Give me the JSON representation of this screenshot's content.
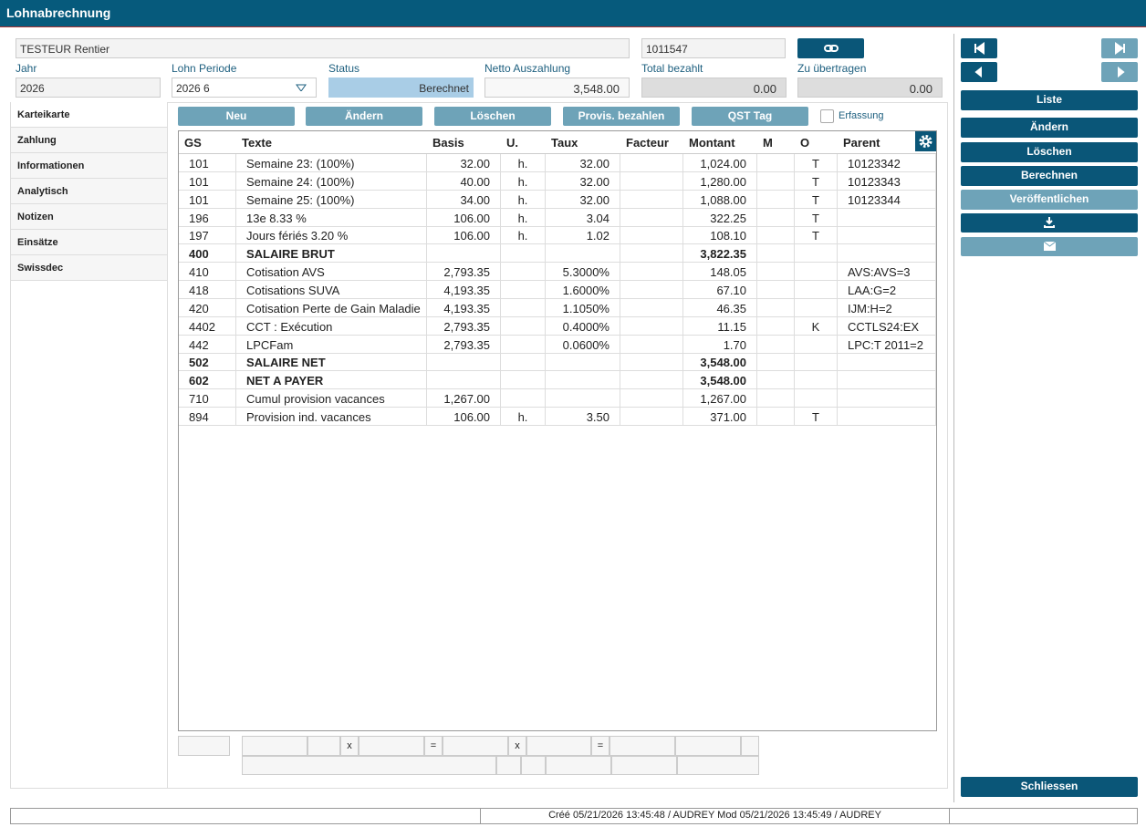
{
  "header": {
    "title": "Lohnabrechnung"
  },
  "form": {
    "name": "TESTEUR  Rentier",
    "number": "1011547",
    "fields": [
      {
        "label": "Jahr",
        "value": "2026"
      },
      {
        "label": "Lohn Periode",
        "value": "2026 6"
      },
      {
        "label": "Status",
        "value": "Berechnet"
      },
      {
        "label": "Netto Auszahlung",
        "value": "3,548.00"
      },
      {
        "label": "Total bezahlt",
        "value": "0.00"
      },
      {
        "label": "Zu übertragen",
        "value": "0.00"
      }
    ]
  },
  "tabs": [
    "Karteikarte",
    "Zahlung",
    "Informationen",
    "Analytisch",
    "Notizen",
    "Einsätze",
    "Swissdec"
  ],
  "toolbar": {
    "buttons": [
      "Neu",
      "Ändern",
      "Löschen",
      "Provis. bezahlen",
      "QST Tag"
    ],
    "checkbox": "Erfassung"
  },
  "table": {
    "columns": [
      "GS",
      "Texte",
      "Basis",
      "U.",
      "Taux",
      "Facteur",
      "Montant",
      "M",
      "O",
      "Parent"
    ],
    "rows": [
      {
        "cells": [
          "101",
          "Semaine 23: (100%)",
          "32.00",
          "h.",
          "32.00",
          "",
          "1,024.00",
          "",
          "T",
          "10123342"
        ]
      },
      {
        "cells": [
          "101",
          "Semaine 24: (100%)",
          "40.00",
          "h.",
          "32.00",
          "",
          "1,280.00",
          "",
          "T",
          "10123343"
        ]
      },
      {
        "cells": [
          "101",
          "Semaine 25: (100%)",
          "34.00",
          "h.",
          "32.00",
          "",
          "1,088.00",
          "",
          "T",
          "10123344"
        ]
      },
      {
        "cells": [
          "196",
          "13e 8.33 %",
          "106.00",
          "h.",
          "3.04",
          "",
          "322.25",
          "",
          "T",
          ""
        ]
      },
      {
        "cells": [
          "197",
          "Jours fériés 3.20 %",
          "106.00",
          "h.",
          "1.02",
          "",
          "108.10",
          "",
          "T",
          ""
        ]
      },
      {
        "cells": [
          "400",
          "SALAIRE BRUT",
          "",
          "",
          "",
          "",
          "3,822.35",
          "",
          "",
          ""
        ],
        "bold": true
      },
      {
        "cells": [
          "410",
          "Cotisation AVS",
          "2,793.35",
          "",
          "5.3000%",
          "",
          "148.05",
          "",
          "",
          "AVS:AVS=3"
        ]
      },
      {
        "cells": [
          "418",
          "Cotisations SUVA",
          "4,193.35",
          "",
          "1.6000%",
          "",
          "67.10",
          "",
          "",
          "LAA:G=2"
        ]
      },
      {
        "cells": [
          "420",
          "Cotisation Perte de Gain Maladie",
          "4,193.35",
          "",
          "1.1050%",
          "",
          "46.35",
          "",
          "",
          "IJM:H=2"
        ]
      },
      {
        "cells": [
          "4402",
          "CCT : Exécution",
          "2,793.35",
          "",
          "0.4000%",
          "",
          "11.15",
          "",
          "K",
          "CCTLS24:EX"
        ]
      },
      {
        "cells": [
          "442",
          "LPCFam",
          "2,793.35",
          "",
          "0.0600%",
          "",
          "1.70",
          "",
          "",
          "LPC:T 2011=2"
        ]
      },
      {
        "cells": [
          "502",
          "SALAIRE NET",
          "",
          "",
          "",
          "",
          "3,548.00",
          "",
          "",
          ""
        ],
        "bold": true
      },
      {
        "cells": [
          "602",
          "NET A PAYER",
          "",
          "",
          "",
          "",
          "3,548.00",
          "",
          "",
          ""
        ],
        "bold": true
      },
      {
        "cells": [
          "710",
          "Cumul provision vacances",
          "1,267.00",
          "",
          "",
          "",
          "1,267.00",
          "",
          "",
          ""
        ]
      },
      {
        "cells": [
          "894",
          "Provision ind. vacances",
          "106.00",
          "h.",
          "3.50",
          "",
          "371.00",
          "",
          "T",
          ""
        ]
      }
    ]
  },
  "calc": {
    "operators": [
      "x",
      "=",
      "x",
      "="
    ]
  },
  "side": {
    "buttons": [
      "Liste",
      "Ändern",
      "Löschen",
      "Berechnen",
      "Veröffentlichen",
      "Schliessen"
    ]
  },
  "footer": {
    "created": "Créé 05/21/2026 13:45:48 / AUDREY Mod 05/21/2026 13:45:49 / AUDREY"
  }
}
